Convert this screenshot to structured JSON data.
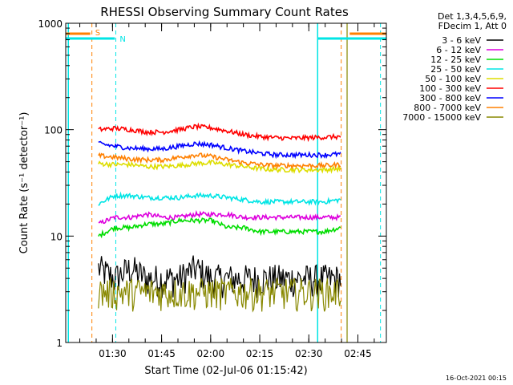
{
  "chart_data": {
    "type": "line",
    "title": "RHESSI Observing Summary Count Rates",
    "xlabel": "Start Time (02-Jul-06 01:15:42)",
    "ylabel": "Count Rate (s⁻¹ detector⁻¹)",
    "y_scale": "log",
    "ylim": [
      1,
      1000
    ],
    "xlim_minutes": [
      0,
      98
    ],
    "x_ticks": [
      {
        "label": "01:30",
        "minutes": 14.3
      },
      {
        "label": "01:45",
        "minutes": 29.3
      },
      {
        "label": "02:00",
        "minutes": 44.3
      },
      {
        "label": "02:15",
        "minutes": 59.3
      },
      {
        "label": "02:30",
        "minutes": 74.3
      },
      {
        "label": "02:45",
        "minutes": 89.3
      }
    ],
    "y_ticks": [
      {
        "label": "1",
        "value": 1
      },
      {
        "label": "10",
        "value": 10
      },
      {
        "label": "100",
        "value": 100
      },
      {
        "label": "1000",
        "value": 1000
      }
    ],
    "legend_header": [
      "Det 1,3,4,5,6,9,",
      "FDecim 1, Att 0"
    ],
    "legend_placement": "right",
    "x_start_minutes": 10,
    "x_end_minutes": 84,
    "series": [
      {
        "name": "3 - 6 keV",
        "color": "#000000",
        "values": [
          5,
          4,
          5,
          4,
          4,
          4,
          5,
          4,
          4,
          4,
          4,
          4,
          4,
          4,
          4,
          4
        ]
      },
      {
        "name": "6 - 12 keV",
        "color": "#dd00dd",
        "values": [
          13,
          15,
          15,
          16,
          15,
          15,
          16,
          16,
          16,
          15,
          15,
          15,
          15,
          15,
          15,
          15
        ]
      },
      {
        "name": "12 - 25 keV",
        "color": "#00dd00",
        "values": [
          10,
          12,
          12,
          13,
          13,
          14,
          14,
          14,
          12,
          12,
          11,
          11,
          11,
          11,
          11,
          12
        ]
      },
      {
        "name": "25 - 50 keV",
        "color": "#00e5e5",
        "values": [
          20,
          24,
          24,
          23,
          23,
          23,
          24,
          24,
          23,
          22,
          21,
          21,
          21,
          21,
          21,
          22
        ]
      },
      {
        "name": "50 - 100 keV",
        "color": "#dddd00",
        "values": [
          48,
          47,
          47,
          45,
          45,
          46,
          48,
          49,
          47,
          45,
          43,
          42,
          42,
          42,
          42,
          43
        ]
      },
      {
        "name": "100 - 300 keV",
        "color": "#ff0000",
        "values": [
          100,
          103,
          100,
          95,
          95,
          100,
          107,
          104,
          97,
          90,
          86,
          84,
          83,
          84,
          85,
          86
        ]
      },
      {
        "name": "300 - 800 keV",
        "color": "#0000ff",
        "values": [
          74,
          70,
          67,
          66,
          66,
          70,
          74,
          72,
          67,
          63,
          60,
          58,
          58,
          58,
          58,
          59
        ]
      },
      {
        "name": "800 - 7000 keV",
        "color": "#ff8000",
        "values": [
          57,
          55,
          53,
          52,
          52,
          55,
          58,
          56,
          52,
          49,
          47,
          46,
          46,
          46,
          46,
          47
        ]
      },
      {
        "name": "7000 - 15000 keV",
        "color": "#888800",
        "values": [
          3,
          3,
          3,
          3,
          3,
          3,
          3,
          3,
          3,
          3,
          3,
          3,
          3,
          3,
          3,
          3
        ]
      }
    ],
    "annotations": [
      {
        "text": "S",
        "color": "#ff8000"
      },
      {
        "text": "N",
        "color": "#00e5e5"
      }
    ],
    "footer_date": "16-Oct-2021 00:15"
  }
}
